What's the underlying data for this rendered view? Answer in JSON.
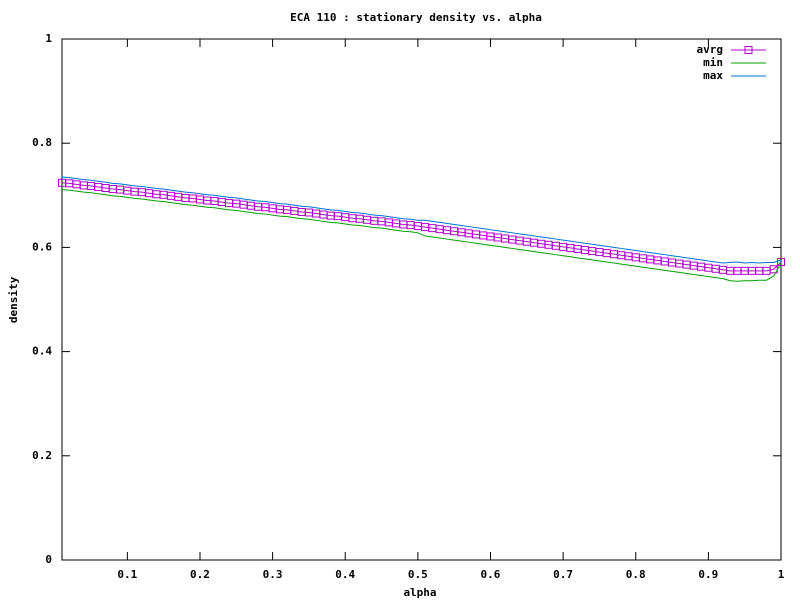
{
  "chart_data": {
    "type": "line",
    "title": "ECA 110 : stationary density vs. alpha",
    "x_label": "alpha",
    "y_label": "density",
    "xlim": [
      0.01,
      1
    ],
    "ylim": [
      0,
      1
    ],
    "xticks": [
      0.1,
      0.2,
      0.3,
      0.4,
      0.5,
      0.6,
      0.7,
      0.8,
      0.9,
      1
    ],
    "yticks": [
      0,
      0.2,
      0.4,
      0.6,
      0.8,
      1
    ],
    "grid": false,
    "legend": "top right",
    "x": [
      0.01,
      0.02,
      0.03,
      0.04,
      0.05,
      0.06,
      0.07,
      0.08,
      0.09,
      0.1,
      0.11,
      0.12,
      0.13,
      0.14,
      0.15,
      0.16,
      0.17,
      0.18,
      0.19,
      0.2,
      0.21,
      0.22,
      0.23,
      0.24,
      0.25,
      0.26,
      0.27,
      0.28,
      0.29,
      0.3,
      0.31,
      0.32,
      0.33,
      0.34,
      0.35,
      0.36,
      0.37,
      0.38,
      0.39,
      0.4,
      0.41,
      0.42,
      0.43,
      0.44,
      0.45,
      0.46,
      0.47,
      0.48,
      0.49,
      0.5,
      0.51,
      0.52,
      0.53,
      0.54,
      0.55,
      0.56,
      0.57,
      0.58,
      0.59,
      0.6,
      0.61,
      0.62,
      0.63,
      0.64,
      0.65,
      0.66,
      0.67,
      0.68,
      0.69,
      0.7,
      0.71,
      0.72,
      0.73,
      0.74,
      0.75,
      0.76,
      0.77,
      0.78,
      0.79,
      0.8,
      0.81,
      0.82,
      0.83,
      0.84,
      0.85,
      0.86,
      0.87,
      0.88,
      0.89,
      0.9,
      0.91,
      0.92,
      0.93,
      0.94,
      0.95,
      0.96,
      0.97,
      0.98,
      0.99,
      1
    ],
    "series": [
      {
        "name": "avrg",
        "color": "#b000d0",
        "marker": "square",
        "values": [
          0.724,
          0.723,
          0.721,
          0.719,
          0.718,
          0.716,
          0.714,
          0.712,
          0.711,
          0.709,
          0.707,
          0.706,
          0.704,
          0.702,
          0.701,
          0.699,
          0.697,
          0.695,
          0.694,
          0.692,
          0.69,
          0.689,
          0.687,
          0.685,
          0.684,
          0.682,
          0.68,
          0.678,
          0.677,
          0.675,
          0.673,
          0.672,
          0.67,
          0.668,
          0.667,
          0.665,
          0.663,
          0.661,
          0.66,
          0.658,
          0.656,
          0.655,
          0.653,
          0.651,
          0.65,
          0.648,
          0.646,
          0.644,
          0.643,
          0.641,
          0.639,
          0.637,
          0.635,
          0.633,
          0.631,
          0.629,
          0.627,
          0.625,
          0.623,
          0.621,
          0.619,
          0.617,
          0.615,
          0.613,
          0.611,
          0.609,
          0.607,
          0.605,
          0.603,
          0.601,
          0.599,
          0.597,
          0.595,
          0.593,
          0.591,
          0.589,
          0.587,
          0.585,
          0.583,
          0.581,
          0.579,
          0.577,
          0.575,
          0.573,
          0.571,
          0.569,
          0.567,
          0.565,
          0.563,
          0.561,
          0.559,
          0.557,
          0.555,
          0.555,
          0.555,
          0.555,
          0.555,
          0.555,
          0.558,
          0.572
        ]
      },
      {
        "name": "min",
        "color": "#00a000",
        "values": [
          0.711,
          0.71,
          0.708,
          0.706,
          0.705,
          0.703,
          0.701,
          0.699,
          0.698,
          0.696,
          0.694,
          0.693,
          0.691,
          0.689,
          0.688,
          0.686,
          0.684,
          0.682,
          0.681,
          0.679,
          0.677,
          0.676,
          0.674,
          0.672,
          0.671,
          0.669,
          0.667,
          0.665,
          0.664,
          0.662,
          0.66,
          0.659,
          0.657,
          0.655,
          0.654,
          0.652,
          0.65,
          0.648,
          0.647,
          0.645,
          0.643,
          0.642,
          0.64,
          0.638,
          0.637,
          0.635,
          0.633,
          0.631,
          0.63,
          0.628,
          0.622,
          0.62,
          0.618,
          0.616,
          0.614,
          0.612,
          0.61,
          0.608,
          0.606,
          0.604,
          0.602,
          0.6,
          0.598,
          0.596,
          0.594,
          0.592,
          0.59,
          0.588,
          0.586,
          0.584,
          0.582,
          0.58,
          0.578,
          0.576,
          0.574,
          0.572,
          0.57,
          0.568,
          0.566,
          0.564,
          0.562,
          0.56,
          0.558,
          0.556,
          0.554,
          0.552,
          0.55,
          0.548,
          0.546,
          0.544,
          0.542,
          0.54,
          0.536,
          0.535,
          0.536,
          0.536,
          0.537,
          0.537,
          0.545,
          0.57
        ]
      },
      {
        "name": "max",
        "color": "#0070d8",
        "values": [
          0.735,
          0.734,
          0.732,
          0.73,
          0.729,
          0.727,
          0.725,
          0.723,
          0.722,
          0.72,
          0.718,
          0.717,
          0.715,
          0.713,
          0.712,
          0.71,
          0.708,
          0.706,
          0.705,
          0.703,
          0.701,
          0.7,
          0.698,
          0.696,
          0.695,
          0.693,
          0.691,
          0.689,
          0.688,
          0.686,
          0.684,
          0.683,
          0.681,
          0.679,
          0.678,
          0.676,
          0.674,
          0.672,
          0.671,
          0.669,
          0.667,
          0.666,
          0.664,
          0.662,
          0.661,
          0.659,
          0.657,
          0.655,
          0.654,
          0.652,
          0.652,
          0.65,
          0.648,
          0.646,
          0.644,
          0.642,
          0.64,
          0.638,
          0.636,
          0.634,
          0.632,
          0.63,
          0.628,
          0.626,
          0.624,
          0.622,
          0.62,
          0.618,
          0.616,
          0.614,
          0.612,
          0.61,
          0.608,
          0.606,
          0.604,
          0.602,
          0.6,
          0.598,
          0.596,
          0.594,
          0.592,
          0.59,
          0.588,
          0.586,
          0.584,
          0.582,
          0.58,
          0.578,
          0.576,
          0.574,
          0.572,
          0.57,
          0.571,
          0.572,
          0.57,
          0.571,
          0.57,
          0.571,
          0.571,
          0.576
        ]
      }
    ]
  }
}
